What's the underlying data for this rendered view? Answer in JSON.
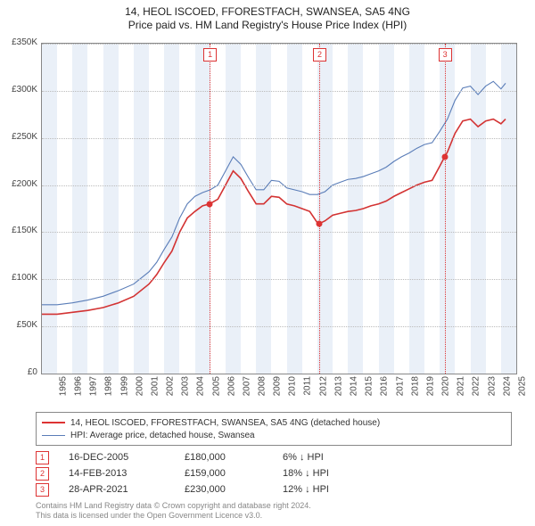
{
  "title_line1": "14, HEOL ISCOED, FFORESTFACH, SWANSEA, SA5 4NG",
  "title_line2": "Price paid vs. HM Land Registry's House Price Index (HPI)",
  "y_axis": {
    "min": 0,
    "max": 350000,
    "step": 50000,
    "labels": [
      "£0",
      "£50K",
      "£100K",
      "£150K",
      "£200K",
      "£250K",
      "£300K",
      "£350K"
    ]
  },
  "x_axis": {
    "year_min": 1995,
    "year_max": 2026,
    "labels": [
      "1995",
      "1996",
      "1997",
      "1998",
      "1999",
      "2000",
      "2001",
      "2002",
      "2003",
      "2004",
      "2005",
      "2006",
      "2007",
      "2008",
      "2009",
      "2010",
      "2011",
      "2012",
      "2013",
      "2014",
      "2015",
      "2016",
      "2017",
      "2018",
      "2019",
      "2020",
      "2021",
      "2022",
      "2023",
      "2024",
      "2025"
    ]
  },
  "bands_odd_years": true,
  "series": {
    "red": {
      "label": "14, HEOL ISCOED, FFORESTFACH, SWANSEA, SA5 4NG (detached house)",
      "color": "#d33333",
      "width": 1.6,
      "data": [
        [
          1995.0,
          63000
        ],
        [
          1996.0,
          63000
        ],
        [
          1997.0,
          65000
        ],
        [
          1998.0,
          67000
        ],
        [
          1999.0,
          70000
        ],
        [
          2000.0,
          75000
        ],
        [
          2001.0,
          82000
        ],
        [
          2002.0,
          95000
        ],
        [
          2002.5,
          105000
        ],
        [
          2003.0,
          118000
        ],
        [
          2003.5,
          130000
        ],
        [
          2004.0,
          150000
        ],
        [
          2004.5,
          165000
        ],
        [
          2005.0,
          172000
        ],
        [
          2005.5,
          178000
        ],
        [
          2005.96,
          180000
        ],
        [
          2006.5,
          185000
        ],
        [
          2007.0,
          200000
        ],
        [
          2007.5,
          215000
        ],
        [
          2008.0,
          207000
        ],
        [
          2008.5,
          193000
        ],
        [
          2009.0,
          180000
        ],
        [
          2009.5,
          180000
        ],
        [
          2010.0,
          188000
        ],
        [
          2010.5,
          187000
        ],
        [
          2011.0,
          180000
        ],
        [
          2011.5,
          178000
        ],
        [
          2012.0,
          175000
        ],
        [
          2012.5,
          172000
        ],
        [
          2013.0,
          160000
        ],
        [
          2013.12,
          159000
        ],
        [
          2013.5,
          162000
        ],
        [
          2014.0,
          168000
        ],
        [
          2014.5,
          170000
        ],
        [
          2015.0,
          172000
        ],
        [
          2015.5,
          173000
        ],
        [
          2016.0,
          175000
        ],
        [
          2016.5,
          178000
        ],
        [
          2017.0,
          180000
        ],
        [
          2017.5,
          183000
        ],
        [
          2018.0,
          188000
        ],
        [
          2018.5,
          192000
        ],
        [
          2019.0,
          196000
        ],
        [
          2019.5,
          200000
        ],
        [
          2020.0,
          203000
        ],
        [
          2020.5,
          205000
        ],
        [
          2021.0,
          220000
        ],
        [
          2021.32,
          230000
        ],
        [
          2021.5,
          235000
        ],
        [
          2022.0,
          255000
        ],
        [
          2022.5,
          268000
        ],
        [
          2023.0,
          270000
        ],
        [
          2023.5,
          262000
        ],
        [
          2024.0,
          268000
        ],
        [
          2024.5,
          270000
        ],
        [
          2025.0,
          265000
        ],
        [
          2025.3,
          270000
        ]
      ]
    },
    "blue": {
      "label": "HPI: Average price, detached house, Swansea",
      "color": "#5a7db8",
      "width": 1.1,
      "data": [
        [
          1995.0,
          73000
        ],
        [
          1996.0,
          73000
        ],
        [
          1997.0,
          75000
        ],
        [
          1998.0,
          78000
        ],
        [
          1999.0,
          82000
        ],
        [
          2000.0,
          88000
        ],
        [
          2001.0,
          95000
        ],
        [
          2002.0,
          108000
        ],
        [
          2002.5,
          118000
        ],
        [
          2003.0,
          132000
        ],
        [
          2003.5,
          145000
        ],
        [
          2004.0,
          165000
        ],
        [
          2004.5,
          180000
        ],
        [
          2005.0,
          188000
        ],
        [
          2005.5,
          192000
        ],
        [
          2006.0,
          195000
        ],
        [
          2006.5,
          200000
        ],
        [
          2007.0,
          215000
        ],
        [
          2007.5,
          230000
        ],
        [
          2008.0,
          222000
        ],
        [
          2008.5,
          208000
        ],
        [
          2009.0,
          195000
        ],
        [
          2009.5,
          195000
        ],
        [
          2010.0,
          205000
        ],
        [
          2010.5,
          204000
        ],
        [
          2011.0,
          197000
        ],
        [
          2011.5,
          195000
        ],
        [
          2012.0,
          193000
        ],
        [
          2012.5,
          190000
        ],
        [
          2013.0,
          190000
        ],
        [
          2013.5,
          193000
        ],
        [
          2014.0,
          200000
        ],
        [
          2014.5,
          203000
        ],
        [
          2015.0,
          206000
        ],
        [
          2015.5,
          207000
        ],
        [
          2016.0,
          209000
        ],
        [
          2016.5,
          212000
        ],
        [
          2017.0,
          215000
        ],
        [
          2017.5,
          219000
        ],
        [
          2018.0,
          225000
        ],
        [
          2018.5,
          230000
        ],
        [
          2019.0,
          234000
        ],
        [
          2019.5,
          239000
        ],
        [
          2020.0,
          243000
        ],
        [
          2020.5,
          245000
        ],
        [
          2021.0,
          257000
        ],
        [
          2021.5,
          270000
        ],
        [
          2022.0,
          290000
        ],
        [
          2022.5,
          303000
        ],
        [
          2023.0,
          305000
        ],
        [
          2023.5,
          296000
        ],
        [
          2024.0,
          305000
        ],
        [
          2024.5,
          310000
        ],
        [
          2025.0,
          302000
        ],
        [
          2025.3,
          308000
        ]
      ]
    }
  },
  "sales": [
    {
      "idx": "1",
      "year": 2005.96,
      "price": 180000,
      "date": "16-DEC-2005",
      "price_label": "£180,000",
      "delta": "6% ↓ HPI"
    },
    {
      "idx": "2",
      "year": 2013.12,
      "price": 159000,
      "date": "14-FEB-2013",
      "price_label": "£159,000",
      "delta": "18% ↓ HPI"
    },
    {
      "idx": "3",
      "year": 2021.32,
      "price": 230000,
      "date": "28-APR-2021",
      "price_label": "£230,000",
      "delta": "12% ↓ HPI"
    }
  ],
  "footer": {
    "line1": "Contains HM Land Registry data © Crown copyright and database right 2024.",
    "line2": "This data is licensed under the Open Government Licence v3.0."
  }
}
